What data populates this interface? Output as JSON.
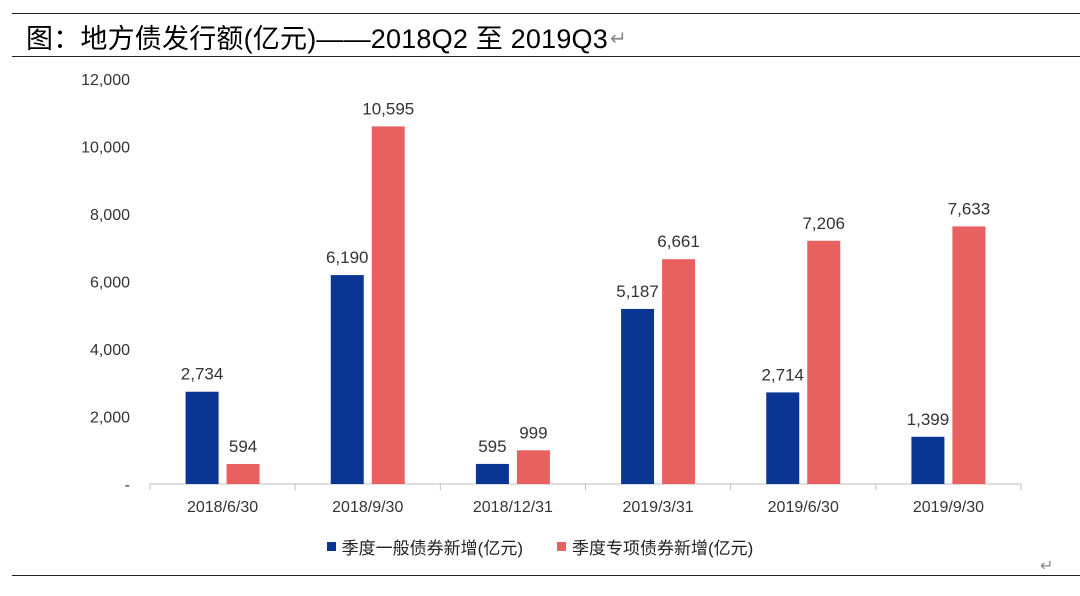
{
  "header": {
    "title": "图：地方债发行额(亿元)——2018Q2 至 2019Q3",
    "return_glyph": "↵"
  },
  "footer": {
    "return_glyph": "↵"
  },
  "colors": {
    "series_general": "#0a3592",
    "series_special": "#e86060",
    "axis": "#bfbfbf",
    "text": "#333333"
  },
  "chart_data": {
    "type": "bar",
    "title": "",
    "xlabel": "",
    "ylabel": "",
    "categories": [
      "2018/6/30",
      "2018/9/30",
      "2018/12/31",
      "2019/3/31",
      "2019/6/30",
      "2019/9/30"
    ],
    "series": [
      {
        "name": "季度一般债券新增(亿元)",
        "values": [
          2734,
          6190,
          595,
          5187,
          2714,
          1399
        ],
        "labels": [
          "2,734",
          "6,190",
          "595",
          "5,187",
          "2,714",
          "1,399"
        ]
      },
      {
        "name": "季度专项债券新增(亿元)",
        "values": [
          594,
          10595,
          999,
          6661,
          7206,
          7633
        ],
        "labels": [
          "594",
          "10,595",
          "999",
          "6,661",
          "7,206",
          "7,633"
        ]
      }
    ],
    "ylim": [
      0,
      12000
    ],
    "yticks": [
      0,
      2000,
      4000,
      6000,
      8000,
      10000,
      12000
    ],
    "ytick_labels": [
      "-",
      "2,000",
      "4,000",
      "6,000",
      "8,000",
      "10,000",
      "12,000"
    ],
    "grid": false,
    "legend_position": "bottom"
  }
}
